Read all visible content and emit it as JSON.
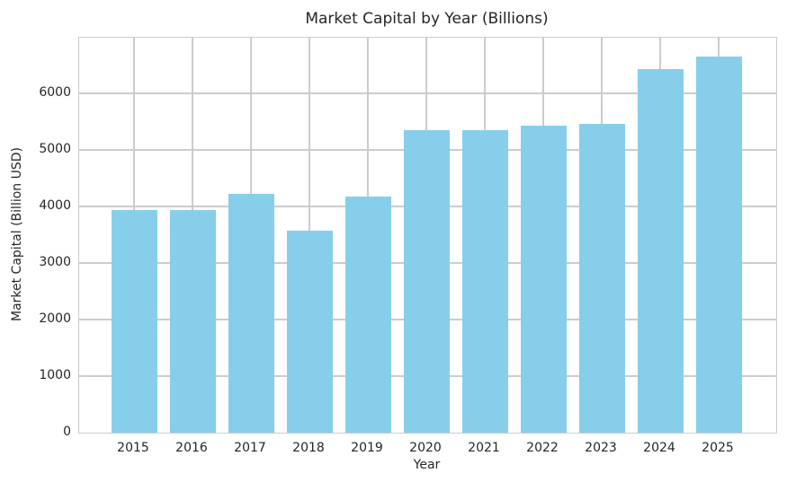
{
  "chart_data": {
    "type": "bar",
    "title": "Market Capital by Year (Billions)",
    "xlabel": "Year",
    "ylabel": "Market Capital (Billion USD)",
    "categories": [
      "2015",
      "2016",
      "2017",
      "2018",
      "2019",
      "2020",
      "2021",
      "2022",
      "2023",
      "2024",
      "2025"
    ],
    "values": [
      3940,
      3940,
      4220,
      3570,
      4180,
      5350,
      5350,
      5430,
      5460,
      6430,
      6650
    ],
    "ylim": [
      0,
      6985
    ],
    "yticks": [
      0,
      1000,
      2000,
      3000,
      4000,
      5000,
      6000
    ],
    "grid": true,
    "legend": "none",
    "colors": {
      "bar": "#87CEEB",
      "grid": "#cccccc",
      "spine": "#cccccc",
      "text": "#262626",
      "background": "#ffffff"
    }
  }
}
